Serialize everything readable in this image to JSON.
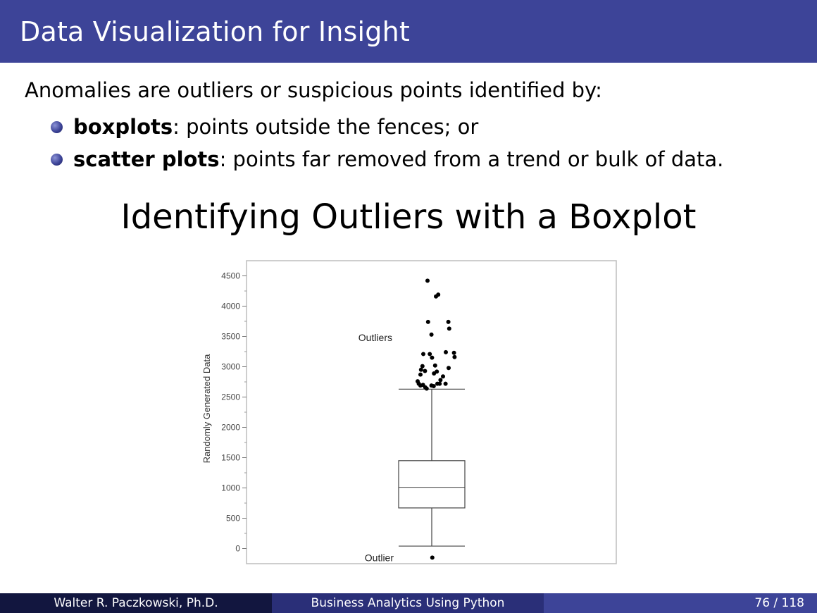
{
  "header": {
    "title": "Data Visualization for Insight"
  },
  "intro": "Anomalies are outliers or suspicious points identified by:",
  "bullets": [
    {
      "bold": "boxplots",
      "rest": ": points outside the fences; or"
    },
    {
      "bold": "scatter plots",
      "rest": ": points far removed from a trend or bulk of data."
    }
  ],
  "slide_heading": "Identifying Outliers with a Boxplot",
  "chart_data": {
    "type": "boxplot",
    "ylabel": "Randomly Generated Data",
    "ylim": [
      -250,
      4750
    ],
    "yticks": [
      0,
      500,
      1000,
      1500,
      2000,
      2500,
      3000,
      3500,
      4000,
      4500
    ],
    "box": {
      "lower_fence": 40,
      "q1": 670,
      "median": 1010,
      "q3": 1450,
      "upper_fence": 2630
    },
    "annotations": [
      {
        "text": "Outliers",
        "y": 3480
      },
      {
        "text": "Outlier",
        "y": -150
      }
    ],
    "outliers": [
      {
        "x": -0.15,
        "y": 4420
      },
      {
        "x": 0.15,
        "y": 4160
      },
      {
        "x": 0.23,
        "y": 4190
      },
      {
        "x": -0.13,
        "y": 3740
      },
      {
        "x": 0.59,
        "y": 3740
      },
      {
        "x": 0.62,
        "y": 3630
      },
      {
        "x": -0.01,
        "y": 3530
      },
      {
        "x": -0.3,
        "y": 3210
      },
      {
        "x": -0.07,
        "y": 3210
      },
      {
        "x": 0.5,
        "y": 3240
      },
      {
        "x": 0.79,
        "y": 3230
      },
      {
        "x": 0.81,
        "y": 3160
      },
      {
        "x": 0.01,
        "y": 3150
      },
      {
        "x": 0.12,
        "y": 3020
      },
      {
        "x": -0.33,
        "y": 3010
      },
      {
        "x": -0.38,
        "y": 2950
      },
      {
        "x": -0.24,
        "y": 2930
      },
      {
        "x": 0.6,
        "y": 2980
      },
      {
        "x": 0.18,
        "y": 2920
      },
      {
        "x": -0.4,
        "y": 2870
      },
      {
        "x": 0.08,
        "y": 2890
      },
      {
        "x": 0.4,
        "y": 2840
      },
      {
        "x": 0.31,
        "y": 2780
      },
      {
        "x": -0.5,
        "y": 2760
      },
      {
        "x": -0.46,
        "y": 2720
      },
      {
        "x": -0.4,
        "y": 2690
      },
      {
        "x": -0.31,
        "y": 2700
      },
      {
        "x": -0.23,
        "y": 2660
      },
      {
        "x": -0.18,
        "y": 2640
      },
      {
        "x": -0.01,
        "y": 2690
      },
      {
        "x": 0.07,
        "y": 2680
      },
      {
        "x": 0.2,
        "y": 2720
      },
      {
        "x": 0.28,
        "y": 2720
      },
      {
        "x": 0.49,
        "y": 2720
      },
      {
        "x": 0.02,
        "y": -150
      }
    ],
    "grid": false
  },
  "footer": {
    "author": "Walter R. Paczkowski, Ph.D.",
    "course": "Business Analytics Using Python",
    "page": "76 / 118"
  }
}
